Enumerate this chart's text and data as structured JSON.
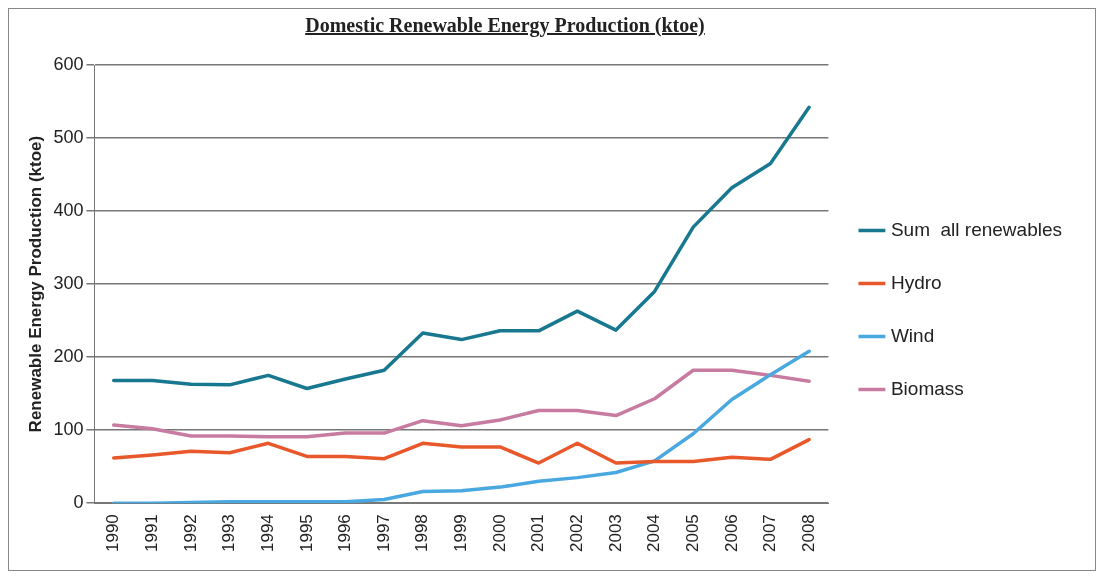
{
  "chart_data": {
    "type": "line",
    "title": "Domestic Renewable Energy Production (ktoe)",
    "ylabel": "Renewable Energy Production (ktoe)",
    "categories": [
      "1990",
      "1991",
      "1992",
      "1993",
      "1994",
      "1995",
      "1996",
      "1997",
      "1998",
      "1999",
      "2000",
      "2001",
      "2002",
      "2003",
      "2004",
      "2005",
      "2006",
      "2007",
      "2008"
    ],
    "series": [
      {
        "name": "Sum  all renewables",
        "color": "#17788f",
        "values": [
          168,
          168,
          163,
          162,
          175,
          157,
          170,
          182,
          233,
          224,
          236,
          236,
          263,
          237,
          290,
          378,
          432,
          465,
          542
        ]
      },
      {
        "name": "Hydro",
        "color": "#e8582a",
        "values": [
          62,
          66,
          71,
          69,
          82,
          64,
          64,
          61,
          82,
          77,
          77,
          55,
          82,
          55,
          57,
          57,
          63,
          60,
          87
        ]
      },
      {
        "name": "Wind",
        "color": "#4aa8e0",
        "values": [
          0,
          0,
          1,
          2,
          2,
          2,
          2,
          5,
          16,
          17,
          22,
          30,
          35,
          42,
          58,
          95,
          142,
          176,
          208
        ]
      },
      {
        "name": "Biomass",
        "color": "#c77ba0",
        "values": [
          107,
          102,
          92,
          92,
          91,
          91,
          96,
          96,
          113,
          106,
          114,
          127,
          127,
          120,
          143,
          182,
          182,
          175,
          167
        ]
      }
    ],
    "ylim": [
      0,
      600
    ],
    "yticks": [
      0,
      100,
      200,
      300,
      400,
      500,
      600
    ],
    "grid": "y",
    "legend": "right",
    "marker": "none",
    "line_style": "solid"
  }
}
